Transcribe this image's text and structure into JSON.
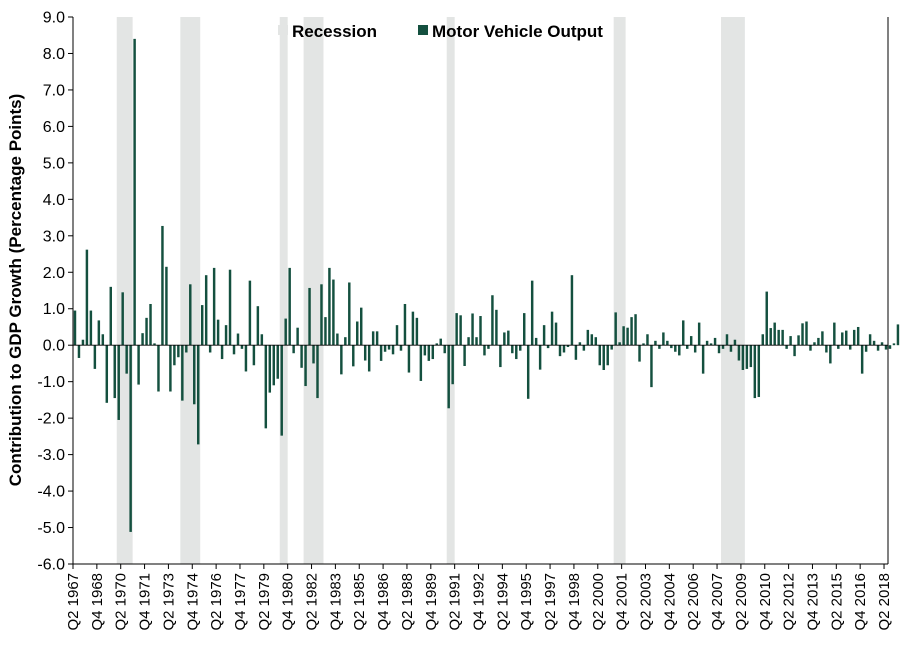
{
  "chart_data": {
    "type": "bar",
    "ylabel": "Contribution to GDP Growth (Percentage Points)",
    "xlabel": "",
    "ylim": [
      -6.0,
      9.0
    ],
    "y_ticks": [
      "-6.0",
      "-5.0",
      "-4.0",
      "-3.0",
      "-2.0",
      "-1.0",
      "0.0",
      "1.0",
      "2.0",
      "3.0",
      "4.0",
      "5.0",
      "6.0",
      "7.0",
      "8.0",
      "9.0"
    ],
    "x_range": [
      1967.25,
      2018.5
    ],
    "x_tick_labels": [
      "Q2 1967",
      "Q4 1968",
      "Q2 1970",
      "Q4 1971",
      "Q2 1973",
      "Q4 1974",
      "Q2 1976",
      "Q4 1977",
      "Q2 1979",
      "Q4 1980",
      "Q2 1982",
      "Q4 1983",
      "Q2 1985",
      "Q4 1986",
      "Q2 1988",
      "Q4 1989",
      "Q2 1991",
      "Q4 1992",
      "Q2 1994",
      "Q4 1995",
      "Q2 1997",
      "Q4 1998",
      "Q2 2000",
      "Q4 2001",
      "Q2 2003",
      "Q4 2004",
      "Q2 2006",
      "Q4 2007",
      "Q2 2009",
      "Q4 2010",
      "Q2 2012",
      "Q4 2013",
      "Q2 2015",
      "Q4 2016",
      "Q2 2018"
    ],
    "grid": false,
    "legend": {
      "position": "top",
      "entries": [
        "Recession",
        "Motor Vehicle Output"
      ]
    },
    "colors": {
      "series": "#14503f",
      "recession": "#e3e5e4",
      "axis": "#000000"
    },
    "recessions": [
      {
        "start": "Q1 1970",
        "end": "Q4 1970"
      },
      {
        "start": "Q1 1974",
        "end": "Q1 1975"
      },
      {
        "start": "Q2 1980",
        "end": "Q3 1980"
      },
      {
        "start": "Q4 1981",
        "end": "Q4 1982"
      },
      {
        "start": "Q4 1990",
        "end": "Q1 1991"
      },
      {
        "start": "Q2 2001",
        "end": "Q4 2001"
      },
      {
        "start": "Q1 2008",
        "end": "Q2 2009"
      }
    ],
    "series": [
      {
        "name": "Motor Vehicle Output",
        "start": "Q2 1967",
        "values": [
          0.95,
          -0.35,
          0.15,
          2.62,
          0.95,
          -0.65,
          0.68,
          0.3,
          -1.58,
          1.6,
          -1.45,
          -2.05,
          1.45,
          -0.78,
          -5.12,
          8.4,
          -1.08,
          0.33,
          0.75,
          1.13,
          0.05,
          -1.27,
          3.27,
          2.15,
          -1.27,
          -0.55,
          -0.33,
          -1.52,
          -0.2,
          1.67,
          -1.62,
          -2.72,
          1.1,
          1.92,
          -0.2,
          2.12,
          0.7,
          -0.38,
          0.55,
          2.07,
          -0.25,
          0.32,
          -0.1,
          -0.72,
          1.77,
          -0.55,
          1.07,
          0.3,
          -2.28,
          -1.3,
          -1.1,
          -0.92,
          -2.48,
          0.73,
          2.12,
          -0.22,
          0.48,
          -0.62,
          -1.12,
          1.57,
          -0.5,
          -1.45,
          1.67,
          0.77,
          2.12,
          1.8,
          0.32,
          -0.8,
          0.22,
          1.72,
          -0.58,
          0.65,
          1.03,
          -0.42,
          -0.72,
          0.38,
          0.38,
          -0.43,
          -0.18,
          -0.12,
          -0.25,
          0.55,
          -0.15,
          1.13,
          -0.75,
          0.92,
          0.75,
          -0.98,
          -0.28,
          -0.43,
          -0.38,
          0.05,
          0.18,
          -0.22,
          -1.73,
          -1.07,
          0.88,
          0.82,
          -0.57,
          0.22,
          0.87,
          0.22,
          0.8,
          -0.28,
          -0.1,
          1.37,
          0.97,
          -0.6,
          0.35,
          0.4,
          -0.22,
          -0.38,
          -0.15,
          0.88,
          -1.47,
          1.77,
          0.2,
          -0.67,
          0.55,
          -0.08,
          0.92,
          0.62,
          -0.3,
          -0.2,
          -0.05,
          1.92,
          -0.4,
          0.08,
          -0.15,
          0.42,
          0.3,
          0.22,
          -0.55,
          -0.68,
          -0.55,
          -0.12,
          0.9,
          0.08,
          0.52,
          0.48,
          0.77,
          0.85,
          -0.45,
          0.05,
          0.3,
          -1.15,
          0.12,
          -0.1,
          0.35,
          0.12,
          -0.08,
          -0.18,
          -0.28,
          0.68,
          -0.1,
          0.25,
          -0.2,
          0.62,
          -0.78,
          0.12,
          0.05,
          0.2,
          -0.22,
          -0.1,
          0.3,
          -0.18,
          0.15,
          -0.42,
          -0.68,
          -0.65,
          -0.6,
          -1.45,
          -1.42,
          0.3,
          1.47,
          0.47,
          0.62,
          0.42,
          0.42,
          -0.1,
          0.25,
          -0.3,
          0.27,
          0.6,
          0.65,
          -0.15,
          0.08,
          0.2,
          0.38,
          -0.2,
          -0.5,
          0.62,
          -0.1,
          0.35,
          0.4,
          -0.12,
          0.42,
          0.5,
          -0.78,
          -0.18,
          0.3,
          0.12,
          -0.15,
          0.08,
          -0.12,
          -0.1,
          0.05,
          0.57,
          0.25,
          -0.15,
          0.2
        ]
      }
    ]
  }
}
